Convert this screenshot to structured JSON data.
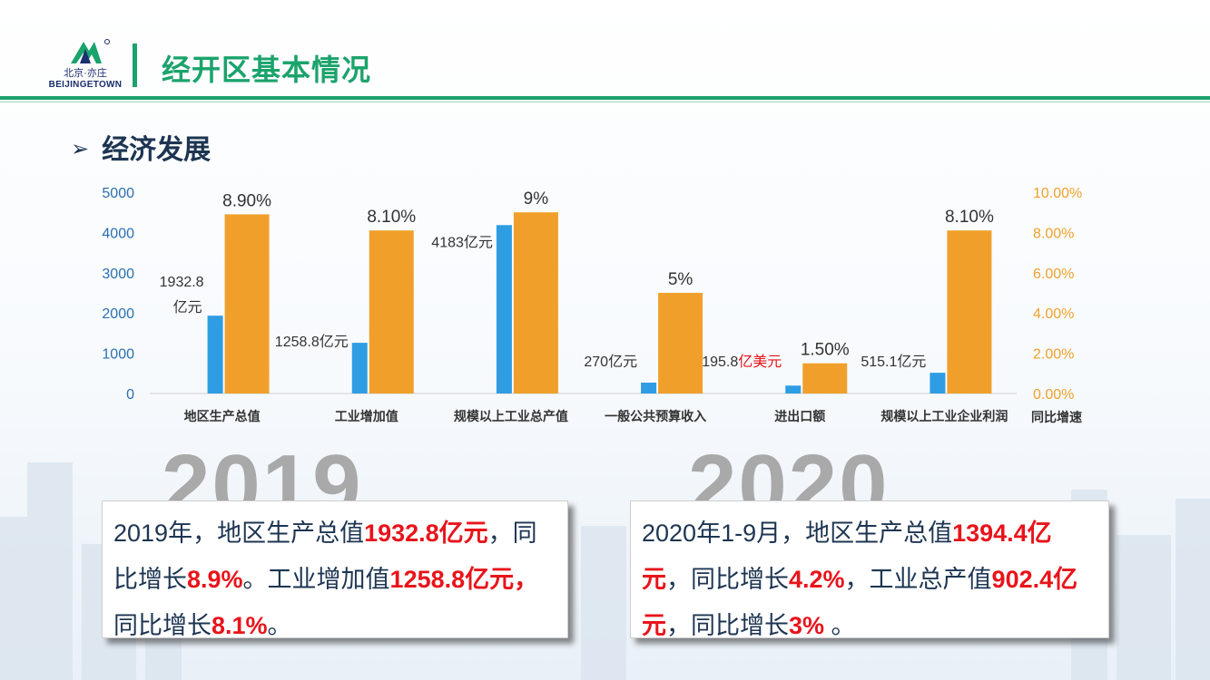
{
  "header": {
    "logo_cn": "北京·亦庄",
    "logo_en": "BEIJINGETOWN",
    "title": "经开区基本情况"
  },
  "section": {
    "title": "经济发展"
  },
  "colors": {
    "green": "#1ba36c",
    "blue": "#2e9de4",
    "orange": "#f0a02a",
    "red": "#e8141b"
  },
  "chart_data": {
    "type": "bar",
    "categories": [
      "地区生产总值",
      "工业增加值",
      "规模以上工业总产值",
      "一般公共预算收入",
      "进出口额",
      "规模以上工业企业利润"
    ],
    "series": [
      {
        "axis": "left",
        "color": "#2e9de4",
        "values": [
          1932.8,
          1258.8,
          4183,
          270,
          195.8,
          515.1
        ],
        "labels": [
          "1932.8亿元",
          "1258.8亿元",
          "4183亿元",
          "270亿元",
          "195.8亿美元",
          "515.1亿元"
        ]
      },
      {
        "axis": "right",
        "color": "#f0a02a",
        "values": [
          8.9,
          8.1,
          9,
          5,
          1.5,
          8.1
        ],
        "labels": [
          "8.90%",
          "8.10%",
          "9%",
          "5%",
          "1.50%",
          "8.10%"
        ]
      }
    ],
    "yleft": {
      "ylim": [
        0,
        5000
      ],
      "ticks": [
        "0",
        "1000",
        "2000",
        "3000",
        "4000",
        "5000"
      ]
    },
    "yright": {
      "ylim": [
        0,
        10
      ],
      "ticks": [
        "0.00%",
        "2.00%",
        "4.00%",
        "6.00%",
        "8.00%",
        "10.00%"
      ],
      "label": "同比增速"
    }
  },
  "years": {
    "left": "2019",
    "right": "2020"
  },
  "box2019": {
    "t1": "2019年，地区生产总值",
    "v1": "1932.8亿元",
    "t2": "，同比增长",
    "v2": "8.9%",
    "t3": "。工业增加值",
    "v3": "1258.8亿元，",
    "t4": "同比增长",
    "v4": "8.1%",
    "t5": "。"
  },
  "box2020": {
    "t1": "2020年1-9月，地区生产总值",
    "v1": "1394.4亿元",
    "t2": "，同比增长",
    "v2": "4.2%",
    "t3": "，工业总产值",
    "v3": "902.4亿元",
    "t4": "，同比增长",
    "v4": "3%",
    "t5": " 。"
  }
}
